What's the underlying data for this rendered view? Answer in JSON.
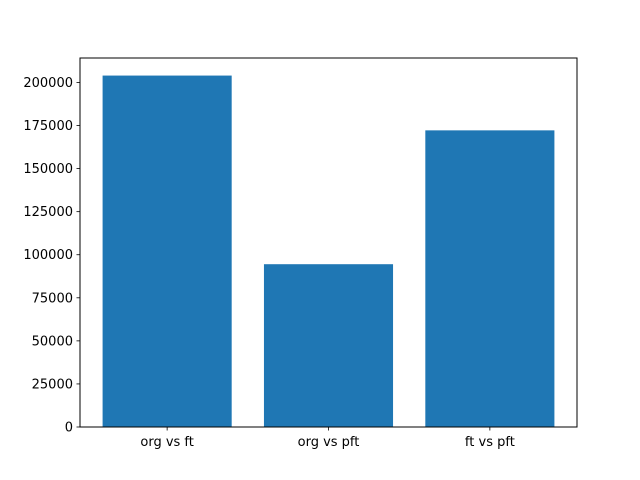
{
  "chart_data": {
    "type": "bar",
    "title": "",
    "xlabel": "",
    "ylabel": "",
    "categories": [
      "org vs ft",
      "org vs pft",
      "ft vs pft"
    ],
    "values": [
      204000,
      94500,
      172200
    ],
    "ylim": [
      0,
      214200
    ],
    "yticks": [
      0,
      25000,
      50000,
      75000,
      100000,
      125000,
      150000,
      175000,
      200000
    ],
    "bar_color": "#1f77b4",
    "axis_color": "#000000",
    "text_color": "#000000",
    "background": "#ffffff",
    "grid": false,
    "legend": null
  }
}
